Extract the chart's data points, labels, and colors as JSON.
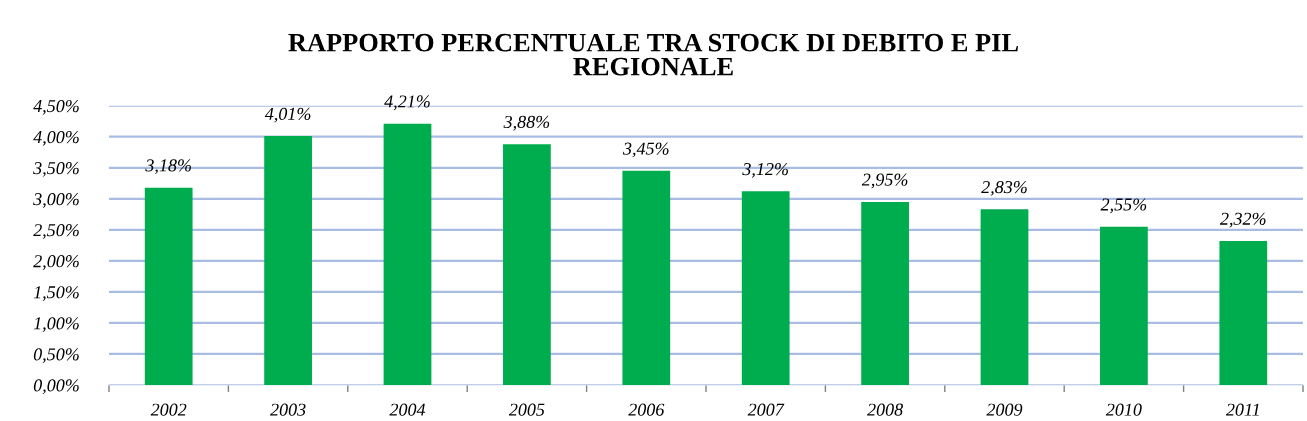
{
  "chart_data": {
    "type": "bar",
    "title": "RAPPORTO PERCENTUALE TRA STOCK DI DEBITO E PIL\nREGIONALE",
    "categories": [
      "2002",
      "2003",
      "2004",
      "2005",
      "2006",
      "2007",
      "2008",
      "2009",
      "2010",
      "2011"
    ],
    "values": [
      3.18,
      4.01,
      4.21,
      3.88,
      3.45,
      3.12,
      2.95,
      2.83,
      2.55,
      2.32
    ],
    "value_labels": [
      "3,18%",
      "4,01%",
      "4,21%",
      "3,88%",
      "3,45%",
      "3,12%",
      "2,95%",
      "2,83%",
      "2,55%",
      "2,32%"
    ],
    "color": "#00ad4e",
    "ylim": [
      0,
      4.5
    ],
    "yticks": [
      {
        "value": 0,
        "label": "0,00%"
      },
      {
        "value": 0.5,
        "label": "0,50%"
      },
      {
        "value": 1,
        "label": "1,00%"
      },
      {
        "value": 1.5,
        "label": "1,50%"
      },
      {
        "value": 2,
        "label": "2,00%"
      },
      {
        "value": 2.5,
        "label": "2,50%"
      },
      {
        "value": 3,
        "label": "3,00%"
      },
      {
        "value": 3.5,
        "label": "3,50%"
      },
      {
        "value": 4,
        "label": "4,00%"
      },
      {
        "value": 4.5,
        "label": "4,50%"
      }
    ],
    "grid": "y",
    "legend": false
  }
}
